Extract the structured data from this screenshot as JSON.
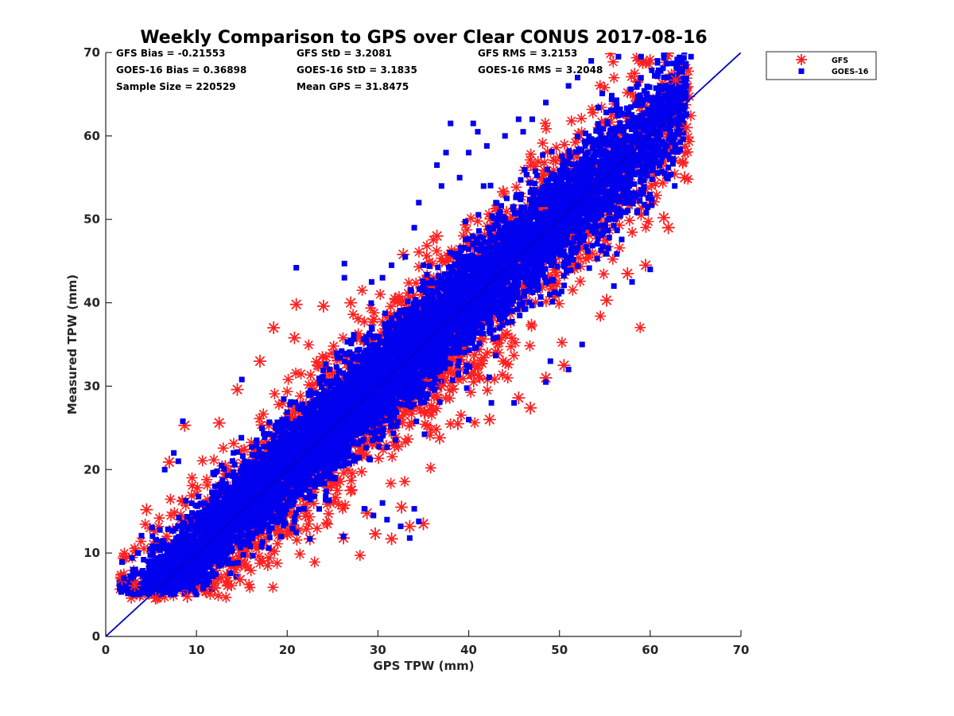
{
  "chart_data": {
    "type": "scatter",
    "title": "Weekly Comparison to GPS over Clear CONUS 2017-08-16",
    "xlabel": "GPS TPW (mm)",
    "ylabel": "Measured TPW (mm)",
    "xlim": [
      0,
      70
    ],
    "ylim": [
      0,
      70
    ],
    "xticks": [
      0,
      10,
      20,
      30,
      40,
      50,
      60,
      70
    ],
    "yticks": [
      0,
      10,
      20,
      30,
      40,
      50,
      60,
      70
    ],
    "grid": false,
    "legend_position": "outside top-right",
    "reference_line": {
      "x": [
        0,
        70
      ],
      "y": [
        0,
        70
      ],
      "color": "#0000cc"
    },
    "annotations": [
      "GFS Bias = -0.21553",
      "GFS StD = 3.2081",
      "GFS RMS = 3.2153",
      "GOES-16 Bias = 0.36898",
      "GOES-16 StD = 3.1835",
      "GOES-16 RMS = 3.2048",
      "Sample Size = 220529",
      "Mean GPS = 31.8475"
    ],
    "series": [
      {
        "name": "GFS",
        "marker": "asterisk",
        "color": "#ff2020",
        "bias": -0.21553,
        "std": 3.2081,
        "sample_size": 220529,
        "mean_x": 31.8475,
        "x_range": [
          1.5,
          64.5
        ],
        "outliers": [
          [
            62.8,
            66.7
          ],
          [
            64.0,
            61.0
          ],
          [
            63.8,
            55.0
          ],
          [
            62.0,
            49.0
          ],
          [
            61.5,
            50.2
          ],
          [
            59.5,
            44.5
          ],
          [
            55.2,
            40.3
          ],
          [
            57.5,
            43.5
          ],
          [
            50.5,
            32.5
          ],
          [
            48.5,
            31.0
          ],
          [
            46.8,
            27.4
          ],
          [
            45.5,
            28.6
          ],
          [
            42.3,
            26.0
          ],
          [
            38.8,
            25.5
          ],
          [
            36.8,
            23.8
          ],
          [
            35.0,
            13.5
          ],
          [
            33.5,
            13.2
          ],
          [
            32.6,
            15.5
          ],
          [
            31.5,
            11.7
          ],
          [
            29.7,
            12.3
          ],
          [
            28.8,
            14.8
          ],
          [
            26.2,
            11.8
          ],
          [
            22.5,
            11.7
          ],
          [
            18.0,
            9.4
          ],
          [
            14.8,
            6.8
          ],
          [
            12.0,
            5.8
          ],
          [
            9.0,
            4.8
          ],
          [
            5.5,
            4.6
          ],
          [
            3.2,
            6.1
          ],
          [
            1.8,
            6.9
          ],
          [
            4.5,
            15.2
          ],
          [
            7.0,
            20.9
          ],
          [
            8.7,
            25.3
          ],
          [
            12.5,
            25.6
          ],
          [
            14.5,
            29.6
          ],
          [
            17.0,
            33.0
          ],
          [
            18.5,
            37.0
          ],
          [
            21.0,
            39.8
          ],
          [
            24.0,
            39.6
          ],
          [
            27.0,
            40.0
          ],
          [
            32.8,
            45.8
          ],
          [
            36.5,
            48.0
          ],
          [
            43.8,
            53.3
          ],
          [
            37.0,
            30.0
          ],
          [
            27.0,
            17.5
          ],
          [
            20.8,
            35.8
          ]
        ]
      },
      {
        "name": "GOES-16",
        "marker": "square",
        "color": "#0000ee",
        "bias": 0.36898,
        "std": 3.1835,
        "sample_size": 220529,
        "mean_x": 31.8475,
        "x_range": [
          1.5,
          64.0
        ],
        "outliers": [
          [
            64.5,
            69.5
          ],
          [
            61.5,
            69.8
          ],
          [
            60.8,
            69.0
          ],
          [
            59.0,
            69.5
          ],
          [
            56.5,
            69.5
          ],
          [
            53.5,
            69.0
          ],
          [
            51.0,
            66.0
          ],
          [
            52.0,
            67.0
          ],
          [
            63.5,
            65.0
          ],
          [
            63.0,
            61.5
          ],
          [
            56.0,
            42.0
          ],
          [
            58.0,
            42.5
          ],
          [
            60.0,
            44.0
          ],
          [
            52.5,
            35.0
          ],
          [
            51.0,
            32.0
          ],
          [
            49.0,
            33.0
          ],
          [
            46.0,
            40.0
          ],
          [
            44.0,
            45.0
          ],
          [
            40.0,
            58.0
          ],
          [
            40.5,
            61.5
          ],
          [
            37.5,
            58.0
          ],
          [
            38.0,
            61.5
          ],
          [
            36.5,
            56.5
          ],
          [
            39.0,
            55.0
          ],
          [
            37.0,
            54.0
          ],
          [
            34.5,
            52.0
          ],
          [
            34.0,
            49.0
          ],
          [
            21.0,
            44.2
          ],
          [
            26.3,
            44.7
          ],
          [
            26.3,
            43.0
          ],
          [
            29.3,
            42.5
          ],
          [
            30.5,
            43.0
          ],
          [
            31.5,
            44.5
          ],
          [
            33.0,
            45.5
          ],
          [
            35.0,
            44.5
          ],
          [
            15.0,
            30.8
          ],
          [
            8.5,
            25.8
          ],
          [
            8.0,
            21.0
          ],
          [
            6.5,
            20.0
          ],
          [
            7.5,
            22.0
          ],
          [
            28.5,
            15.3
          ],
          [
            30.5,
            16.0
          ],
          [
            31.0,
            14.0
          ],
          [
            32.5,
            13.2
          ],
          [
            33.5,
            11.8
          ],
          [
            34.5,
            13.8
          ],
          [
            34.0,
            15.3
          ],
          [
            29.5,
            14.5
          ],
          [
            26.2,
            12.0
          ],
          [
            22.5,
            11.7
          ],
          [
            42.5,
            28.0
          ],
          [
            45.0,
            28.0
          ],
          [
            48.5,
            30.5
          ],
          [
            40.0,
            26.0
          ],
          [
            3.0,
            8.0
          ],
          [
            2.0,
            7.0
          ],
          [
            42.0,
            58.8
          ],
          [
            44.0,
            60.0
          ],
          [
            46.0,
            60.5
          ],
          [
            47.0,
            62.0
          ],
          [
            48.5,
            64.0
          ],
          [
            45.5,
            62.0
          ],
          [
            41.0,
            60.5
          ],
          [
            43.0,
            52.0
          ]
        ]
      }
    ]
  }
}
